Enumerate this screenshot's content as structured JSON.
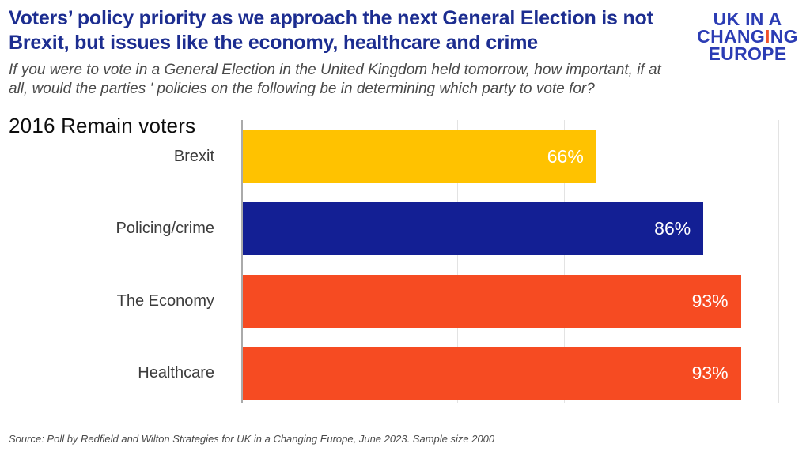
{
  "header": {
    "title_lines": [
      "Voters’ policy priority as we approach the next General Election is not",
      "Brexit, but issues like the economy, healthcare and crime"
    ],
    "subtitle_lines": [
      "If you were to vote in a General Election in the United Kingdom held tomorrow, how important, if at",
      "all, would the parties ' policies on the following be in determining which party to vote for?"
    ],
    "title_color": "#1C2D90"
  },
  "logo": {
    "line1": "UK IN A",
    "line2_letters": [
      {
        "ch": "C",
        "orange": false
      },
      {
        "ch": "H",
        "orange": false
      },
      {
        "ch": "A",
        "orange": false
      },
      {
        "ch": "N",
        "orange": false
      },
      {
        "ch": "G",
        "orange": false
      },
      {
        "ch": "I",
        "orange": true
      },
      {
        "ch": "N",
        "orange": false
      },
      {
        "ch": "G",
        "orange": false
      }
    ],
    "line3": "EUROPE",
    "blue": "#2B3CB4",
    "orange": "#F0502A"
  },
  "chart": {
    "heading": "2016 Remain voters",
    "source": "Source: Poll by Redfield and Wilton Strategies for UK in a Changing Europe, June 2023. Sample size 2000"
  },
  "chart_data": {
    "type": "bar",
    "orientation": "horizontal",
    "title": "2016 Remain voters",
    "categories": [
      "Brexit",
      "Policing/crime",
      "The Economy",
      "Healthcare"
    ],
    "values": [
      66,
      86,
      93,
      93
    ],
    "value_labels": [
      "66%",
      "86%",
      "93%",
      "93%"
    ],
    "bar_colors": [
      "#FFC200",
      "#131F94",
      "#F64B22",
      "#F64B22"
    ],
    "xlim": [
      0,
      100
    ],
    "gridline_values": [
      20,
      40,
      60,
      80,
      100
    ],
    "grid": true,
    "legend": false,
    "axis_line_color": "#aaaaaa",
    "gridline_color": "#e3e3e3",
    "label_color": "#3C3C3C",
    "value_label_color": "#FFFFFF"
  }
}
